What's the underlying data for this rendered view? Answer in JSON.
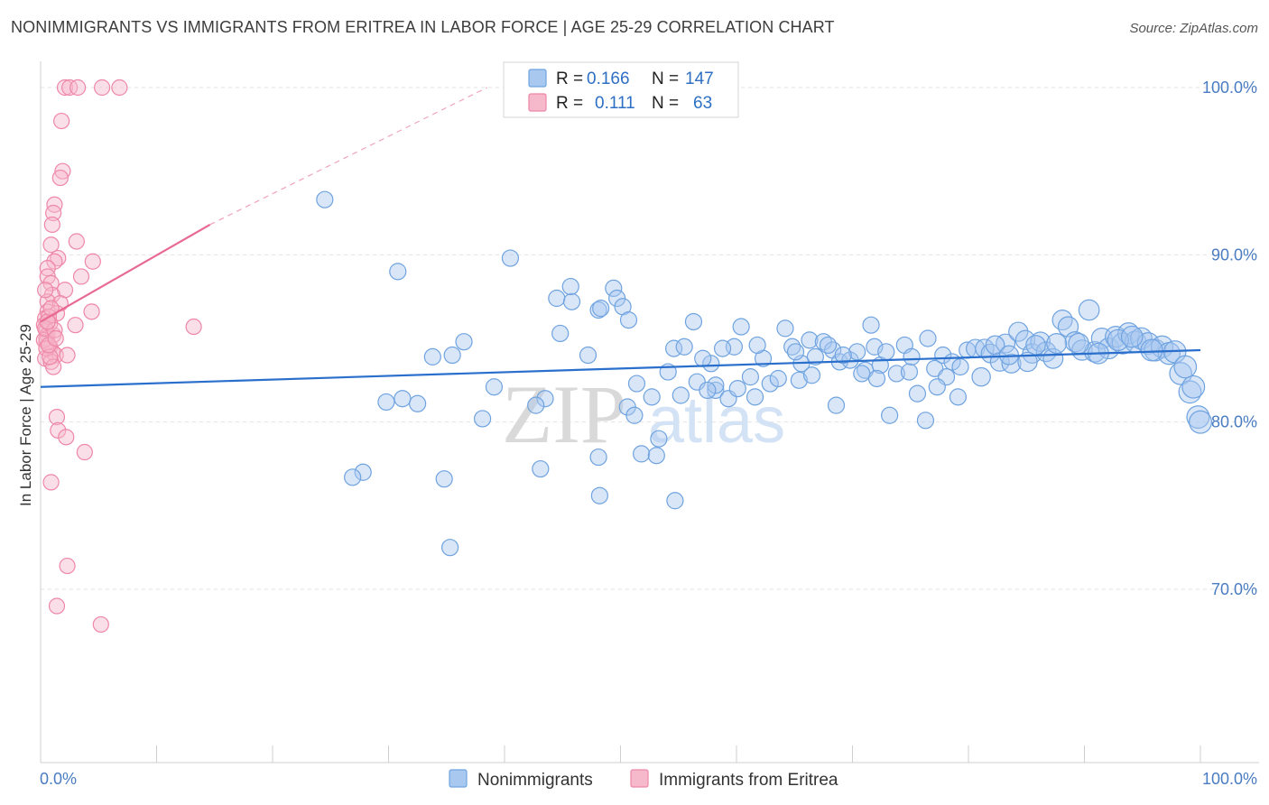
{
  "title": "NONIMMIGRANTS VS IMMIGRANTS FROM ERITREA IN LABOR FORCE | AGE 25-29 CORRELATION CHART",
  "source": "Source: ZipAtlas.com",
  "colors": {
    "blue_fill": "#a9c8f0",
    "blue_stroke": "#6fa3e0",
    "blue_line": "#2a6fcc",
    "pink_fill": "#f6b8cb",
    "pink_stroke": "#ee87a8",
    "pink_line": "#e86a93",
    "grid": "#e3e3e3",
    "axis_text": "#4a7cc2"
  },
  "legend": {
    "rows": [
      {
        "r_label": "R =",
        "r_value": "0.166",
        "n_label": "N =",
        "n_value": "147"
      },
      {
        "r_label": "R =",
        "r_value": "0.111",
        "n_label": "N =",
        "n_value": "63"
      }
    ]
  },
  "watermark": {
    "part1": "ZIP",
    "part2": "atlas"
  },
  "chart_data": {
    "type": "scatter",
    "title": "NONIMMIGRANTS VS IMMIGRANTS FROM ERITREA IN LABOR FORCE | AGE 25-29 CORRELATION CHART",
    "xlabel": "",
    "ylabel": "In Labor Force | Age 25-29",
    "xlim": [
      0,
      100
    ],
    "ylim": [
      59,
      102.5
    ],
    "x_tick_labels": [
      "0.0%",
      "100.0%"
    ],
    "y_ticks": [
      70,
      80,
      90,
      100
    ],
    "y_tick_labels": [
      "70.0%",
      "80.0%",
      "90.0%",
      "100.0%"
    ],
    "series": [
      {
        "name": "Nonimmigrants",
        "r": 0.166,
        "n": 147,
        "trend": {
          "x0": 0,
          "y0": 82.1,
          "x1": 100,
          "y1": 84.3
        },
        "points": [
          [
            24.5,
            93.3
          ],
          [
            30.8,
            89.0
          ],
          [
            40.5,
            89.8
          ],
          [
            36.5,
            84.8
          ],
          [
            35.5,
            84.0
          ],
          [
            33.8,
            83.9
          ],
          [
            31.2,
            81.4
          ],
          [
            32.5,
            81.1
          ],
          [
            29.8,
            81.2
          ],
          [
            38.1,
            80.2
          ],
          [
            39.1,
            82.1
          ],
          [
            34.8,
            76.6
          ],
          [
            27.8,
            77.0
          ],
          [
            26.9,
            76.7
          ],
          [
            35.3,
            72.5
          ],
          [
            43.1,
            77.2
          ],
          [
            43.5,
            81.4
          ],
          [
            42.7,
            81.0
          ],
          [
            44.8,
            85.3
          ],
          [
            44.5,
            87.4
          ],
          [
            45.8,
            87.2
          ],
          [
            45.7,
            88.1
          ],
          [
            47.2,
            84.0
          ],
          [
            48.1,
            86.7
          ],
          [
            48.3,
            86.8
          ],
          [
            49.4,
            88.0
          ],
          [
            49.7,
            87.4
          ],
          [
            50.2,
            86.9
          ],
          [
            50.7,
            86.1
          ],
          [
            50.6,
            80.9
          ],
          [
            51.4,
            82.3
          ],
          [
            51.8,
            78.1
          ],
          [
            51.2,
            80.4
          ],
          [
            48.2,
            75.6
          ],
          [
            48.1,
            77.9
          ],
          [
            53.1,
            78.0
          ],
          [
            53.3,
            79.0
          ],
          [
            54.7,
            75.3
          ],
          [
            54.6,
            84.4
          ],
          [
            55.5,
            84.5
          ],
          [
            56.3,
            86.0
          ],
          [
            56.6,
            82.4
          ],
          [
            57.8,
            83.5
          ],
          [
            57.1,
            83.8
          ],
          [
            58.2,
            81.9
          ],
          [
            58.2,
            82.2
          ],
          [
            59.3,
            81.4
          ],
          [
            59.8,
            84.5
          ],
          [
            60.4,
            85.7
          ],
          [
            61.2,
            82.7
          ],
          [
            61.6,
            81.5
          ],
          [
            62.3,
            83.8
          ],
          [
            62.9,
            82.3
          ],
          [
            63.6,
            82.6
          ],
          [
            64.2,
            85.6
          ],
          [
            64.8,
            84.5
          ],
          [
            65.4,
            82.5
          ],
          [
            65.6,
            83.5
          ],
          [
            66.3,
            84.9
          ],
          [
            66.8,
            83.9
          ],
          [
            67.5,
            84.8
          ],
          [
            68.3,
            84.3
          ],
          [
            68.9,
            83.6
          ],
          [
            69.8,
            83.7
          ],
          [
            70.4,
            84.2
          ],
          [
            71.1,
            83.1
          ],
          [
            71.6,
            85.8
          ],
          [
            71.9,
            84.5
          ],
          [
            72.4,
            83.4
          ],
          [
            72.9,
            84.2
          ],
          [
            73.8,
            82.9
          ],
          [
            74.5,
            84.6
          ],
          [
            74.9,
            83.0
          ],
          [
            75.6,
            81.7
          ],
          [
            76.5,
            85.0
          ],
          [
            77.1,
            83.2
          ],
          [
            77.8,
            84.0
          ],
          [
            78.1,
            82.7
          ],
          [
            78.6,
            83.6
          ],
          [
            79.3,
            83.3
          ],
          [
            79.9,
            84.3
          ],
          [
            80.6,
            84.4
          ],
          [
            81.4,
            84.4
          ],
          [
            81.9,
            84.1
          ],
          [
            82.7,
            83.6
          ],
          [
            83.2,
            84.7
          ],
          [
            83.7,
            83.5
          ],
          [
            84.3,
            85.4
          ],
          [
            84.9,
            84.9
          ],
          [
            85.5,
            84.1
          ],
          [
            86.2,
            84.8
          ],
          [
            86.7,
            84.2
          ],
          [
            87.3,
            83.8
          ],
          [
            88.1,
            86.1
          ],
          [
            88.6,
            85.7
          ],
          [
            89.2,
            84.8
          ],
          [
            89.8,
            84.3
          ],
          [
            90.4,
            86.7
          ],
          [
            90.9,
            84.2
          ],
          [
            91.5,
            85.0
          ],
          [
            92.1,
            84.4
          ],
          [
            92.7,
            85.1
          ],
          [
            93.3,
            84.7
          ],
          [
            93.8,
            85.3
          ],
          [
            94.4,
            84.8
          ],
          [
            94.9,
            85.0
          ],
          [
            95.5,
            84.7
          ],
          [
            96.1,
            84.3
          ],
          [
            96.7,
            84.5
          ],
          [
            97.3,
            84.1
          ],
          [
            97.8,
            84.2
          ],
          [
            98.3,
            82.9
          ],
          [
            98.7,
            83.3
          ],
          [
            99.1,
            81.8
          ],
          [
            99.4,
            82.1
          ],
          [
            99.8,
            80.3
          ],
          [
            100.0,
            80.0
          ],
          [
            65.1,
            84.2
          ],
          [
            66.5,
            82.8
          ],
          [
            69.2,
            84.0
          ],
          [
            70.8,
            82.9
          ],
          [
            72.1,
            82.6
          ],
          [
            73.2,
            80.4
          ],
          [
            75.1,
            83.9
          ],
          [
            76.3,
            80.1
          ],
          [
            77.3,
            82.1
          ],
          [
            79.1,
            81.5
          ],
          [
            81.1,
            82.7
          ],
          [
            82.3,
            84.6
          ],
          [
            83.5,
            84.0
          ],
          [
            85.8,
            84.6
          ],
          [
            87.6,
            84.7
          ],
          [
            89.5,
            84.7
          ],
          [
            91.2,
            84.1
          ],
          [
            92.9,
            84.9
          ],
          [
            94.1,
            85.1
          ],
          [
            95.8,
            84.3
          ],
          [
            61.8,
            84.6
          ],
          [
            60.1,
            82.0
          ],
          [
            58.8,
            84.4
          ],
          [
            57.5,
            81.9
          ],
          [
            55.2,
            81.6
          ],
          [
            54.1,
            83.0
          ],
          [
            52.7,
            81.5
          ],
          [
            67.9,
            84.6
          ],
          [
            68.6,
            81.0
          ],
          [
            85.1,
            83.6
          ]
        ]
      },
      {
        "name": "Immigrants from Eritrea",
        "r": 0.111,
        "n": 63,
        "trend": {
          "x0": 0,
          "y0": 86.0,
          "x1": 14.6,
          "y1": 91.8
        },
        "trend_dashed": {
          "x0": 14.6,
          "y0": 91.8,
          "x1": 38.5,
          "y1": 100.0
        },
        "points": [
          [
            2.1,
            100.0
          ],
          [
            2.5,
            100.0
          ],
          [
            3.2,
            100.0
          ],
          [
            5.3,
            100.0
          ],
          [
            6.8,
            100.0
          ],
          [
            1.8,
            98.0
          ],
          [
            1.9,
            95.0
          ],
          [
            1.7,
            94.6
          ],
          [
            1.2,
            93.0
          ],
          [
            1.1,
            92.5
          ],
          [
            1.0,
            91.8
          ],
          [
            3.1,
            90.8
          ],
          [
            0.9,
            90.6
          ],
          [
            4.5,
            89.6
          ],
          [
            1.5,
            89.8
          ],
          [
            1.2,
            89.6
          ],
          [
            0.6,
            89.2
          ],
          [
            0.6,
            88.7
          ],
          [
            3.5,
            88.7
          ],
          [
            0.9,
            88.3
          ],
          [
            2.1,
            87.9
          ],
          [
            1.0,
            87.6
          ],
          [
            0.6,
            87.2
          ],
          [
            1.7,
            87.1
          ],
          [
            0.6,
            86.6
          ],
          [
            1.4,
            86.5
          ],
          [
            4.4,
            86.6
          ],
          [
            0.4,
            86.2
          ],
          [
            0.3,
            85.8
          ],
          [
            3.0,
            85.8
          ],
          [
            13.2,
            85.7
          ],
          [
            0.5,
            85.5
          ],
          [
            0.6,
            85.2
          ],
          [
            1.1,
            85.2
          ],
          [
            0.5,
            84.8
          ],
          [
            0.8,
            84.5
          ],
          [
            1.0,
            84.2
          ],
          [
            1.3,
            84.0
          ],
          [
            2.3,
            84.0
          ],
          [
            0.4,
            83.8
          ],
          [
            0.9,
            83.6
          ],
          [
            1.1,
            83.3
          ],
          [
            0.5,
            85.0
          ],
          [
            0.8,
            85.9
          ],
          [
            0.3,
            84.9
          ],
          [
            1.4,
            80.3
          ],
          [
            1.5,
            79.5
          ],
          [
            2.2,
            79.1
          ],
          [
            3.8,
            78.2
          ],
          [
            0.9,
            76.4
          ],
          [
            2.3,
            71.4
          ],
          [
            1.4,
            69.0
          ],
          [
            5.2,
            67.9
          ],
          [
            0.4,
            87.9
          ],
          [
            0.7,
            86.3
          ],
          [
            0.5,
            84.4
          ],
          [
            0.8,
            83.9
          ],
          [
            0.4,
            85.6
          ],
          [
            0.7,
            84.6
          ],
          [
            1.2,
            85.5
          ],
          [
            0.6,
            86.0
          ],
          [
            0.9,
            86.8
          ],
          [
            1.3,
            85.0
          ]
        ]
      }
    ]
  }
}
